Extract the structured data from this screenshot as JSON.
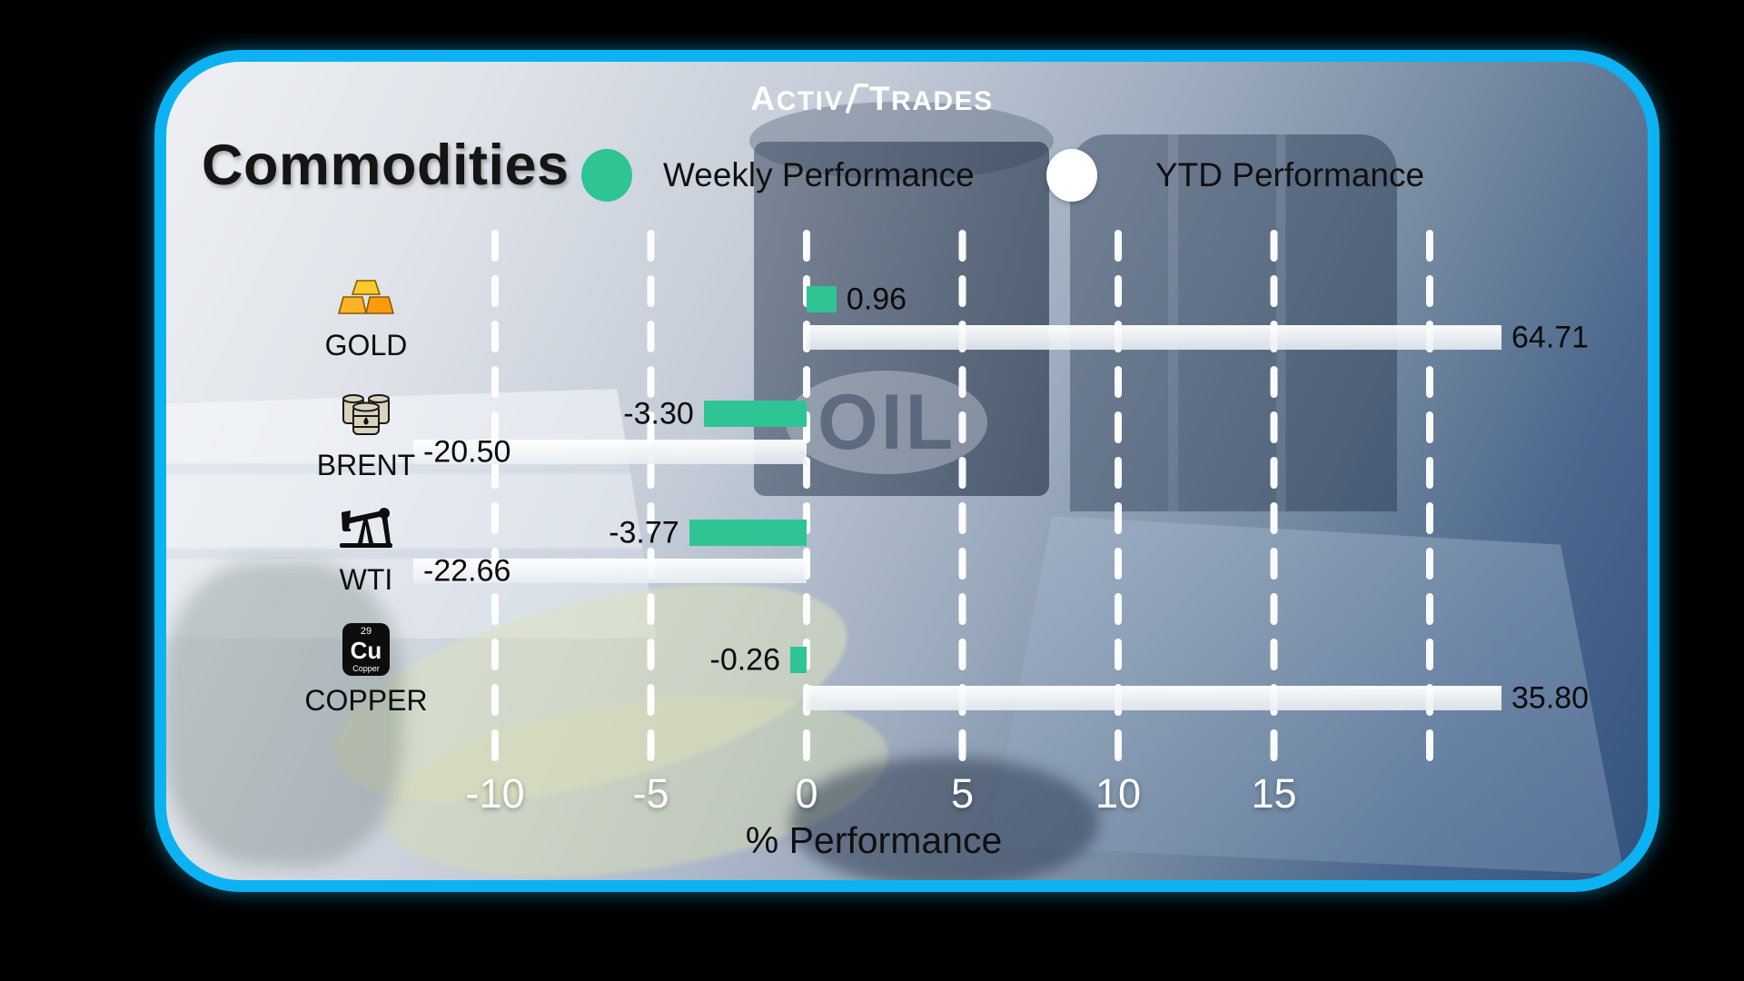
{
  "brand": {
    "prefix": "Activ",
    "suffix": "Trades"
  },
  "title": "Commodities",
  "legend": [
    {
      "label": "Weekly Performance",
      "color": "#2FC493"
    },
    {
      "label": "YTD Performance",
      "color": "#FFFFFF"
    }
  ],
  "watermark": "OIL",
  "copper_badge": {
    "atomic_number": "29",
    "symbol": "Cu",
    "name": "Copper"
  },
  "chart_data": {
    "type": "bar",
    "orientation": "horizontal",
    "title": "Commodities",
    "categories": [
      "GOLD",
      "BRENT",
      "WTI",
      "COPPER"
    ],
    "series": [
      {
        "name": "Weekly Performance",
        "color": "#2FC493",
        "values": [
          0.96,
          -3.3,
          -3.77,
          -0.26
        ]
      },
      {
        "name": "YTD Performance",
        "color": "#F2F5F8",
        "values": [
          64.71,
          -20.5,
          -22.66,
          35.8
        ]
      }
    ],
    "xlabel": "% Performance",
    "xticks": [
      -10,
      -5,
      0,
      5,
      10,
      15
    ],
    "grid_xs": [
      -10,
      -5,
      0,
      5,
      10,
      15,
      20
    ],
    "grid": "dashed-vertical-white",
    "legend_position": "top",
    "bars_clamped_to_plot": true,
    "value_labels_decimals": 2
  }
}
